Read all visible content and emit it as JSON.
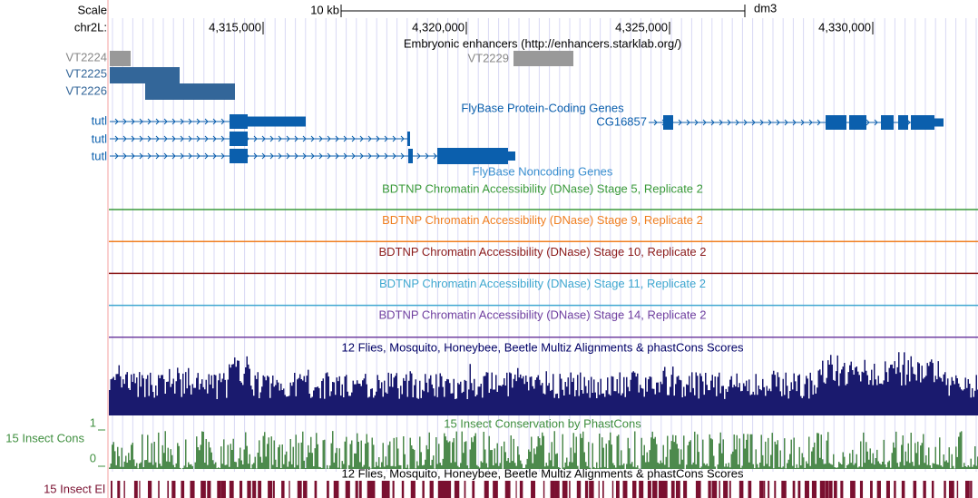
{
  "header": {
    "scale_label": "Scale",
    "scale_bar": "10 kb",
    "assembly": "dm3",
    "chrom": "chr2L:",
    "positions": [
      {
        "value": 4315000,
        "label": "4,315,000"
      },
      {
        "value": 4320000,
        "label": "4,320,000"
      },
      {
        "value": 4325000,
        "label": "4,325,000"
      },
      {
        "value": 4330000,
        "label": "4,330,000"
      }
    ]
  },
  "tracks": {
    "enhancers": {
      "title": "Embryonic enhancers (http://enhancers.starklab.org/)",
      "items": [
        "VT2224",
        "VT2225",
        "VT2226",
        "VT2229"
      ]
    },
    "protein_genes": {
      "title": "FlyBase Protein-Coding Genes",
      "genes": [
        "tutl",
        "tutl",
        "tutl",
        "CG16857"
      ]
    },
    "noncoding": {
      "title": "FlyBase Noncoding Genes"
    },
    "dnase": [
      "BDTNP Chromatin Accessibility (DNase) Stage 5, Replicate 2",
      "BDTNP Chromatin Accessibility (DNase) Stage 9, Replicate 2",
      "BDTNP Chromatin Accessibility (DNase) Stage 10, Replicate 2",
      "BDTNP Chromatin Accessibility (DNase) Stage 11, Replicate 2",
      "BDTNP Chromatin Accessibility (DNase) Stage 14, Replicate 2"
    ],
    "multiz": {
      "title": "12 Flies, Mosquito, Honeybee, Beetle Multiz Alignments & phastCons Scores"
    },
    "phastcons": {
      "title": "15 Insect Conservation by PhastCons",
      "label": "15 Insect Cons",
      "max": 1,
      "min": 0
    },
    "elements": {
      "label": "15 Insect El",
      "title": "12 Flies, Mosquito, Honeybee, Beetle Multiz Alignments & phastCons Scores"
    }
  }
}
